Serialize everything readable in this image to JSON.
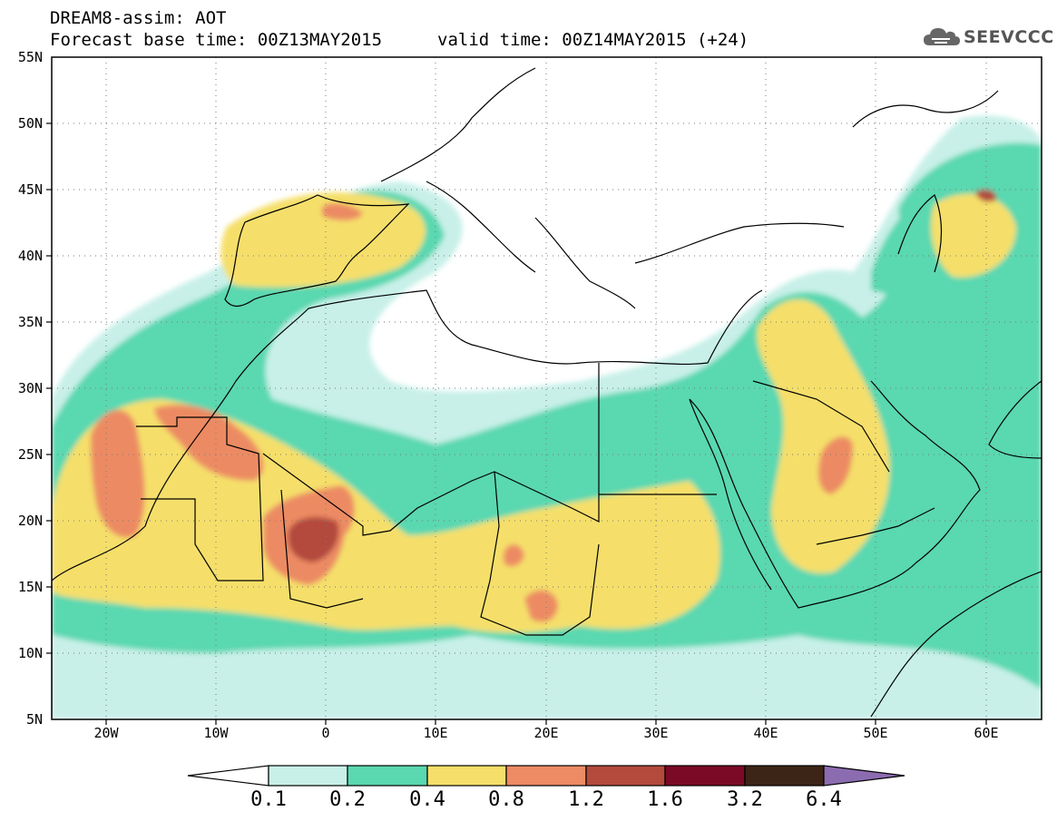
{
  "header": {
    "title": "DREAM8-assim: AOT",
    "base_time": "Forecast base time: 00Z13MAY2015",
    "valid_time": "valid time: 00Z14MAY2015 (+24)"
  },
  "logo": {
    "text": "SEEVCCC",
    "icon": "cloud-icon"
  },
  "map": {
    "lat_labels": [
      "55N",
      "50N",
      "45N",
      "40N",
      "35N",
      "30N",
      "25N",
      "20N",
      "15N",
      "10N",
      "5N"
    ],
    "lon_labels": [
      "20W",
      "10W",
      "0",
      "10E",
      "20E",
      "30E",
      "40E",
      "50E",
      "60E"
    ],
    "lat_range": [
      5,
      55
    ],
    "lon_range": [
      -25,
      65
    ],
    "grid": true,
    "grid_style": "dotted"
  },
  "legend": {
    "labels": [
      "0.1",
      "0.2",
      "0.4",
      "0.8",
      "1.2",
      "1.6",
      "3.2",
      "6.4"
    ],
    "colors": [
      "#ffffff",
      "#c8f0e8",
      "#5ad8b0",
      "#f5df6a",
      "#ec8b64",
      "#b44a3c",
      "#7a0a26",
      "#3c2416",
      "#8c6cb0"
    ]
  }
}
